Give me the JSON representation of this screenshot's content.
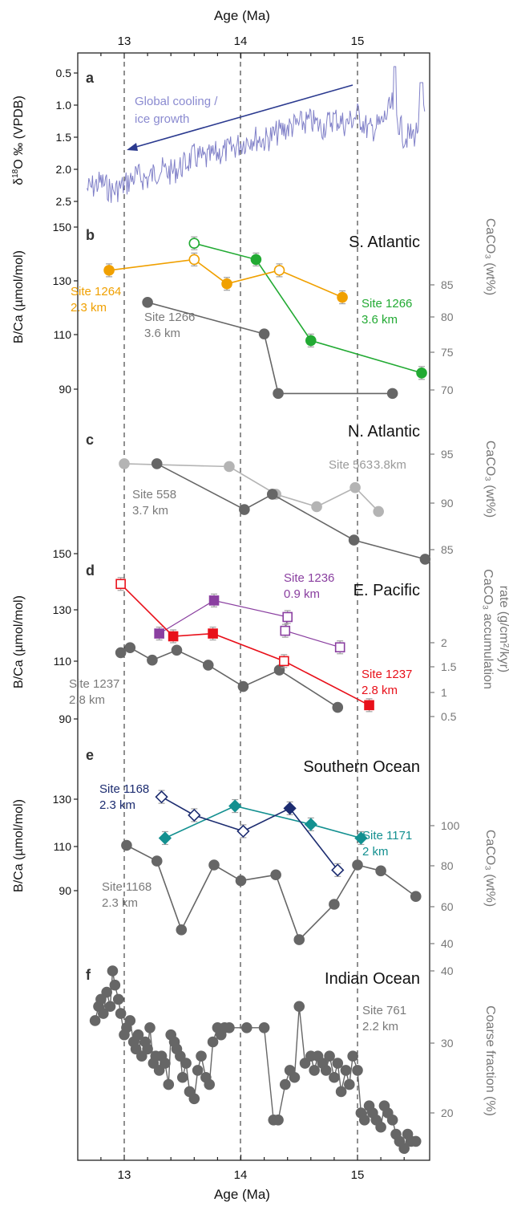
{
  "figure": {
    "top_axis_label": "Age (Ma)",
    "bottom_axis_label": "Age (Ma)",
    "x_ticks": [
      "13",
      "14",
      "15"
    ],
    "annotation_text_line1": "Global cooling /",
    "annotation_text_line2": "ice growth"
  },
  "panels": {
    "a": {
      "letter": "a",
      "ylabel": "δ¹⁸O ‰ (VPDB)",
      "ylabel_main": "δ",
      "ylabel_sup": "18",
      "ylabel_rest": "O ‰ (VPDB)",
      "ticks": [
        "0.5",
        "1.0",
        "1.5",
        "2.0",
        "2.5"
      ]
    },
    "b": {
      "letter": "b",
      "region": "S. Atlantic",
      "ylabel": "B/Ca (µmol/mol)",
      "ylabel_right": "CaCO₃ (wt%)",
      "ticks": [
        "150",
        "130",
        "110",
        "90"
      ],
      "ticks_right": [
        "85",
        "80",
        "75",
        "70"
      ],
      "labels": [
        "Site 1264",
        "2.3 km",
        "Site 1266",
        "3.6 km",
        "Site 1266",
        "3.6 km"
      ]
    },
    "c": {
      "letter": "c",
      "region": "N. Atlantic",
      "ylabel_right": "CaCO₃ (wt%)",
      "ticks_right": [
        "95",
        "90",
        "85"
      ],
      "labels": [
        "Site 558",
        "3.7 km",
        "Site 563",
        "3.8km"
      ]
    },
    "d": {
      "letter": "d",
      "region": "E. Pacific",
      "ylabel": "B/Ca (µmol/mol)",
      "ylabel_right_1": "CaCO₃ accumulation",
      "ylabel_right_2": "rate (g/cm²/kyr)",
      "ticks": [
        "150",
        "130",
        "110",
        "90"
      ],
      "ticks_right": [
        "2",
        "1.5",
        "1",
        "0.5"
      ],
      "labels": [
        "Site 1236",
        "0.9 km",
        "Site 1237",
        "2.8 km",
        "Site 1237",
        "2.8 km"
      ]
    },
    "e": {
      "letter": "e",
      "region": "Southern Ocean",
      "ylabel": "B/Ca (µmol/mol)",
      "ylabel_right": "CaCO₃ (wt%)",
      "ticks": [
        "130",
        "110",
        "90"
      ],
      "ticks_right": [
        "100",
        "80",
        "60",
        "40"
      ],
      "labels": [
        "Site 1168",
        "2.3 km",
        "Site 1171",
        "2 km",
        "Site 1168",
        "2.3 km"
      ]
    },
    "f": {
      "letter": "f",
      "region": "Indian Ocean",
      "ylabel_right": "Coarse fraction (%)",
      "ticks_right": [
        "40",
        "30",
        "20"
      ],
      "labels": [
        "Site 761",
        "2.2 km"
      ]
    }
  },
  "colors": {
    "d18O": "#8080c8",
    "arrow": "#2b3a8f",
    "orange": "#f0a000",
    "green": "#22aa33",
    "dark_gray": "#666666",
    "light_gray": "#b4b4b4",
    "purple": "#8a3fa0",
    "red": "#e8101a",
    "navy": "#1c2c70",
    "teal": "#139090",
    "gray_text": "#7a7a7a",
    "errbar": "#a0a0a0"
  },
  "chart_data": [
    {
      "panel": "a",
      "type": "line",
      "xlabel": "Age (Ma)",
      "ylabel": "δ18O ‰ (VPDB)",
      "xlim": [
        12.6,
        15.6
      ],
      "ylim": [
        2.6,
        0.35
      ],
      "series": [
        {
          "values_x": [
            12.7,
            12.8,
            12.9,
            13.0,
            13.1,
            13.2,
            13.3,
            13.4,
            13.5,
            13.6,
            13.7,
            13.8,
            13.9,
            14.0,
            14.1,
            14.2,
            14.3,
            14.4,
            14.5,
            14.6,
            14.7,
            14.8,
            14.9,
            15.0,
            15.1,
            15.2,
            15.3,
            15.4,
            15.5,
            15.55
          ],
          "values_y": [
            2.3,
            2.2,
            2.35,
            2.25,
            2.1,
            2.15,
            2.0,
            2.05,
            1.95,
            1.8,
            1.85,
            1.75,
            1.7,
            1.6,
            1.5,
            1.55,
            1.45,
            1.35,
            1.3,
            1.25,
            1.35,
            1.2,
            1.3,
            1.15,
            1.4,
            1.3,
            1.0,
            1.5,
            1.45,
            1.1
          ]
        }
      ]
    },
    {
      "panel": "b",
      "type": "line",
      "xlabel": "Age (Ma)",
      "ylabel": "B/Ca (µmol/mol)",
      "ylabel_right": "CaCO3 (wt%)",
      "xlim": [
        12.6,
        15.6
      ],
      "ylim": [
        85,
        152
      ],
      "ylim_right": [
        68,
        90
      ],
      "series": [
        {
          "name": "Site 1264",
          "axis": "left",
          "x": [
            12.87,
            13.6,
            13.88,
            14.33,
            14.87
          ],
          "y": [
            134,
            138,
            129,
            134,
            124
          ],
          "open": [
            false,
            true,
            false,
            true,
            false
          ]
        },
        {
          "name": "Site 1266",
          "axis": "left",
          "x": [
            13.6,
            14.13,
            14.6,
            15.55
          ],
          "y": [
            144,
            138,
            108,
            96
          ],
          "open": [
            true,
            false,
            false,
            false
          ]
        },
        {
          "name": "Site 1266",
          "axis": "right",
          "x": [
            13.2,
            14.2,
            14.32,
            15.3
          ],
          "y": [
            82.5,
            78.0,
            69.5,
            69.5
          ]
        }
      ]
    },
    {
      "panel": "c",
      "type": "line",
      "xlabel": "Age (Ma)",
      "ylabel_right": "CaCO3 (wt%)",
      "xlim": [
        12.6,
        15.6
      ],
      "ylim_right": [
        83,
        96
      ],
      "series": [
        {
          "name": "Site 558",
          "x": [
            13.28,
            14.03,
            14.27,
            14.97,
            15.58
          ],
          "y": [
            94,
            89.2,
            90.8,
            86.0,
            84.0
          ]
        },
        {
          "name": "Site 563",
          "x": [
            13.0,
            13.9,
            14.3,
            14.65,
            14.98,
            15.18
          ],
          "y": [
            94,
            93.7,
            90.8,
            89.5,
            91.5,
            89
          ]
        }
      ]
    },
    {
      "panel": "d",
      "type": "line",
      "xlabel": "Age (Ma)",
      "ylabel": "B/Ca (µmol/mol)",
      "ylabel_right": "CaCO3 accumulation rate (g/cm2/kyr)",
      "xlim": [
        12.6,
        15.6
      ],
      "ylim": [
        80,
        156
      ],
      "ylim_right": [
        0.3,
        2.9
      ],
      "series": [
        {
          "name": "Site 1236",
          "axis": "left",
          "x": [
            13.3,
            13.77,
            14.4,
            14.38,
            14.85
          ],
          "y": [
            121,
            133,
            127,
            122,
            116
          ],
          "open": [
            false,
            false,
            true,
            true,
            true
          ]
        },
        {
          "name": "Site 1237",
          "axis": "left",
          "x": [
            12.97,
            13.42,
            13.76,
            14.37,
            15.1
          ],
          "y": [
            139,
            120,
            121,
            111,
            95
          ],
          "open": [
            true,
            false,
            false,
            true,
            false
          ]
        },
        {
          "name": "Site 1237",
          "axis": "right",
          "x": [
            12.97,
            13.05,
            13.24,
            13.45,
            13.72,
            14.02,
            14.33,
            14.83
          ],
          "y": [
            1.8,
            1.9,
            1.65,
            1.85,
            1.55,
            1.12,
            1.45,
            0.7
          ]
        }
      ]
    },
    {
      "panel": "e",
      "type": "line",
      "xlabel": "Age (Ma)",
      "ylabel": "B/Ca (µmol/mol)",
      "ylabel_right": "CaCO3 (wt%)",
      "xlim": [
        12.6,
        15.6
      ],
      "ylim": [
        80,
        144
      ],
      "ylim_right": [
        38,
        118
      ],
      "series": [
        {
          "name": "Site 1168",
          "axis": "left",
          "x": [
            13.32,
            13.6,
            14.02,
            14.42,
            14.83
          ],
          "y": [
            131,
            123,
            116,
            126,
            99
          ],
          "open": [
            true,
            true,
            true,
            false,
            true
          ]
        },
        {
          "name": "Site 1171",
          "axis": "left",
          "x": [
            13.35,
            13.95,
            14.6,
            15.03
          ],
          "y": [
            113,
            127,
            119,
            113
          ],
          "open": [
            false,
            false,
            false,
            false
          ]
        },
        {
          "name": "Site 1168",
          "axis": "right",
          "x": [
            13.02,
            13.28,
            13.49,
            13.77,
            14.0,
            14.3,
            14.5,
            14.8,
            15.0,
            15.2,
            15.5
          ],
          "y": [
            90,
            82,
            47,
            80,
            72,
            75,
            42,
            60,
            80,
            77,
            64
          ]
        }
      ]
    },
    {
      "panel": "f",
      "type": "scatter",
      "xlabel": "Age (Ma)",
      "ylabel_right": "Coarse fraction (%)",
      "xlim": [
        12.6,
        15.6
      ],
      "ylim_right": [
        13,
        42
      ],
      "series": [
        {
          "name": "Site 761",
          "x": [
            12.75,
            12.78,
            12.8,
            12.82,
            12.85,
            12.88,
            12.9,
            12.92,
            12.95,
            12.97,
            13.0,
            13.02,
            13.05,
            13.08,
            13.1,
            13.12,
            13.15,
            13.18,
            13.2,
            13.22,
            13.25,
            13.27,
            13.3,
            13.32,
            13.35,
            13.38,
            13.4,
            13.43,
            13.45,
            13.48,
            13.5,
            13.53,
            13.56,
            13.6,
            13.63,
            13.66,
            13.7,
            13.73,
            13.76,
            13.8,
            13.83,
            13.86,
            13.9,
            14.05,
            14.2,
            14.28,
            14.32,
            14.38,
            14.42,
            14.46,
            14.5,
            14.55,
            14.6,
            14.63,
            14.66,
            14.7,
            14.73,
            14.76,
            14.8,
            14.83,
            14.86,
            14.9,
            14.93,
            14.96,
            15.0,
            15.03,
            15.06,
            15.1,
            15.13,
            15.16,
            15.2,
            15.23,
            15.26,
            15.3,
            15.33,
            15.36,
            15.4,
            15.43,
            15.46,
            15.5
          ],
          "y": [
            33,
            35,
            36,
            34,
            37,
            35,
            40,
            38,
            36,
            34,
            31,
            32,
            33,
            30,
            29,
            31,
            28,
            30,
            29,
            32,
            27,
            28,
            26,
            28,
            27,
            24,
            31,
            30,
            29,
            28,
            25,
            27,
            23,
            22,
            26,
            28,
            25,
            24,
            30,
            32,
            31,
            32,
            32,
            32,
            32,
            19,
            19,
            24,
            26,
            25,
            35,
            27,
            28,
            26,
            28,
            27,
            26,
            28,
            25,
            27,
            23,
            26,
            24,
            28,
            26,
            20,
            19,
            21,
            20,
            19,
            18,
            21,
            20,
            19,
            17,
            16,
            15,
            17,
            16,
            16
          ]
        }
      ]
    }
  ]
}
